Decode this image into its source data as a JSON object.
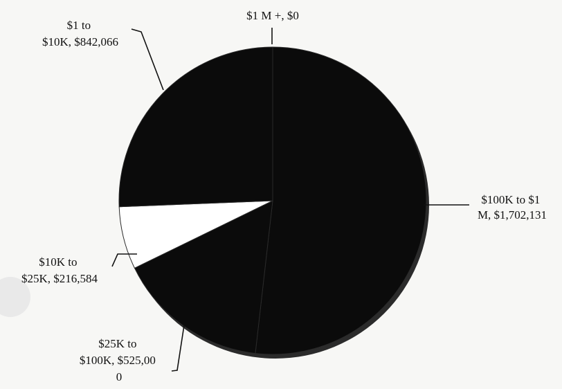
{
  "chart_data": {
    "type": "pie",
    "title": "",
    "slices": [
      {
        "label_lines": [
          "$1 M +, $0"
        ],
        "value": 0,
        "color": "#0b0b0b"
      },
      {
        "label_lines": [
          "$100K to $1",
          "M, $1,702,131"
        ],
        "value": 1702131,
        "color": "#0b0b0b"
      },
      {
        "label_lines": [
          "$25K to",
          "$100K, $525,00",
          "0"
        ],
        "value": 525000,
        "color": "#0b0b0b"
      },
      {
        "label_lines": [
          "$10K to",
          "$25K, $216,584"
        ],
        "value": 216584,
        "color": "#ffffff"
      },
      {
        "label_lines": [
          "$1 to",
          "$10K, $842,066"
        ],
        "value": 842066,
        "color": "#0b0b0b"
      }
    ],
    "start_angle_deg": 0,
    "direction": "clockwise",
    "legend": "none",
    "data_labels": "category, value"
  }
}
